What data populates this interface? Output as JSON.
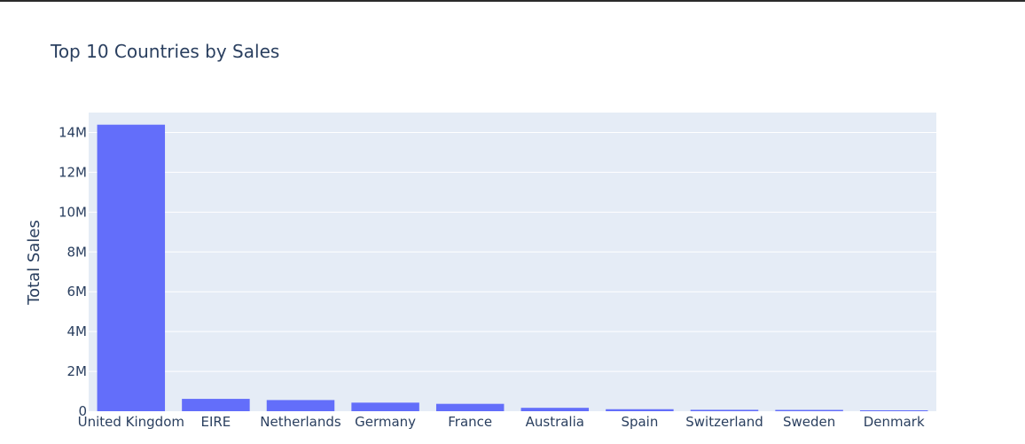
{
  "chart_data": {
    "type": "bar",
    "title": "Top 10 Countries by Sales",
    "xlabel": "",
    "ylabel": "Total Sales",
    "categories": [
      "United Kingdom",
      "EIRE",
      "Netherlands",
      "Germany",
      "France",
      "Australia",
      "Spain",
      "Switzerland",
      "Sweden",
      "Denmark"
    ],
    "values": [
      14390000,
      620000,
      560000,
      430000,
      370000,
      170000,
      100000,
      70000,
      65000,
      45000
    ],
    "ylim": [
      0,
      15000000
    ],
    "yticks": [
      0,
      2000000,
      4000000,
      6000000,
      8000000,
      10000000,
      12000000,
      14000000
    ],
    "ytick_labels": [
      "0",
      "2M",
      "4M",
      "6M",
      "8M",
      "10M",
      "12M",
      "14M"
    ],
    "grid": true,
    "colors": {
      "bar": "#636efa",
      "plot_background": "#e5ecf6",
      "grid": "#ffffff",
      "text": "#2a3f5f"
    }
  }
}
